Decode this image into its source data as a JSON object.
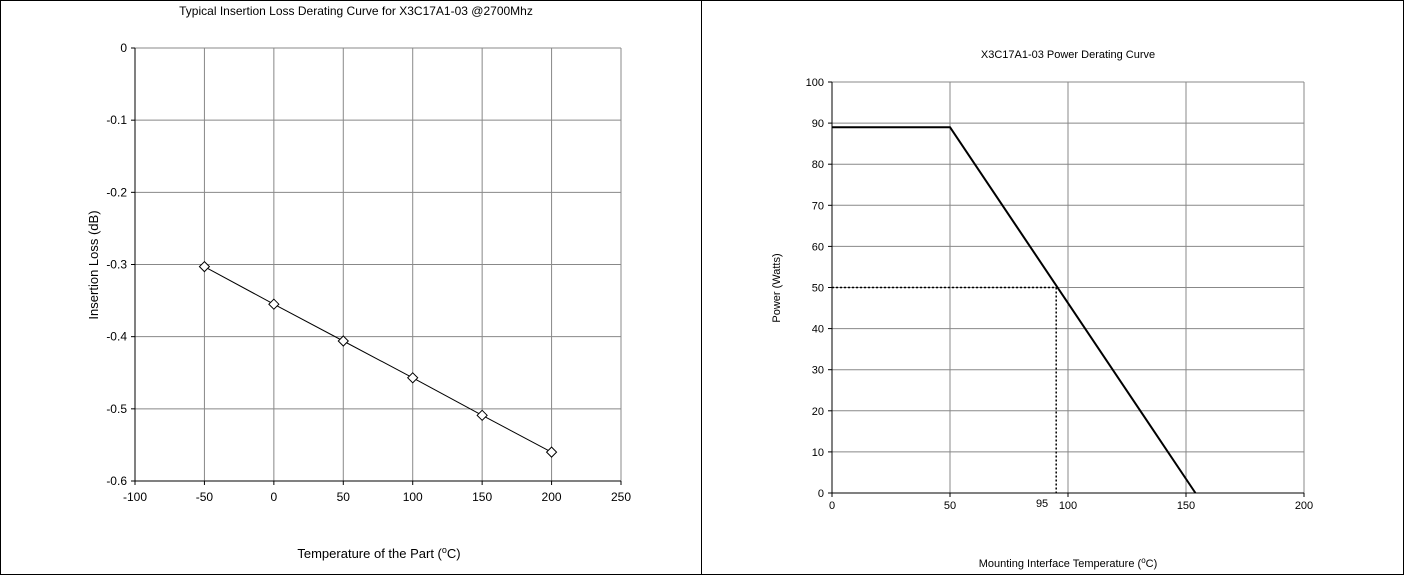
{
  "chart_data": [
    {
      "type": "line",
      "title": "Typical Insertion Loss Derating Curve for X3C17A1-03 @2700Mhz",
      "xlabel_main": "Temperature of the Part (",
      "xlabel_sup": "o",
      "xlabel_end": "C)",
      "ylabel": "Insertion Loss (dB)",
      "xlim": [
        -100,
        250
      ],
      "ylim": [
        -0.6,
        0
      ],
      "xticks": [
        -100,
        -50,
        0,
        50,
        100,
        150,
        200,
        250
      ],
      "yticks": [
        0,
        -0.1,
        -0.2,
        -0.3,
        -0.4,
        -0.5,
        -0.6
      ],
      "grid": true,
      "marker": "diamond",
      "series": [
        {
          "x": [
            -50,
            0,
            50,
            100,
            150,
            200
          ],
          "y": [
            -0.303,
            -0.355,
            -0.406,
            -0.457,
            -0.509,
            -0.56
          ]
        }
      ]
    },
    {
      "type": "line",
      "title": "X3C17A1-03 Power Derating Curve",
      "xlabel_main": "Mounting Interface Temperature (",
      "xlabel_sup": "o",
      "xlabel_end": "C)",
      "ylabel": "Power (Watts)",
      "xlim": [
        0,
        200
      ],
      "ylim": [
        0,
        100
      ],
      "xticks": [
        0,
        50,
        100,
        150,
        200
      ],
      "yticks": [
        0,
        10,
        20,
        30,
        40,
        50,
        60,
        70,
        80,
        90,
        100
      ],
      "grid": true,
      "series": [
        {
          "x": [
            0,
            50,
            154
          ],
          "y": [
            89,
            89,
            0
          ]
        }
      ],
      "reference": {
        "x": 95,
        "y": 50,
        "label": "95"
      }
    }
  ]
}
